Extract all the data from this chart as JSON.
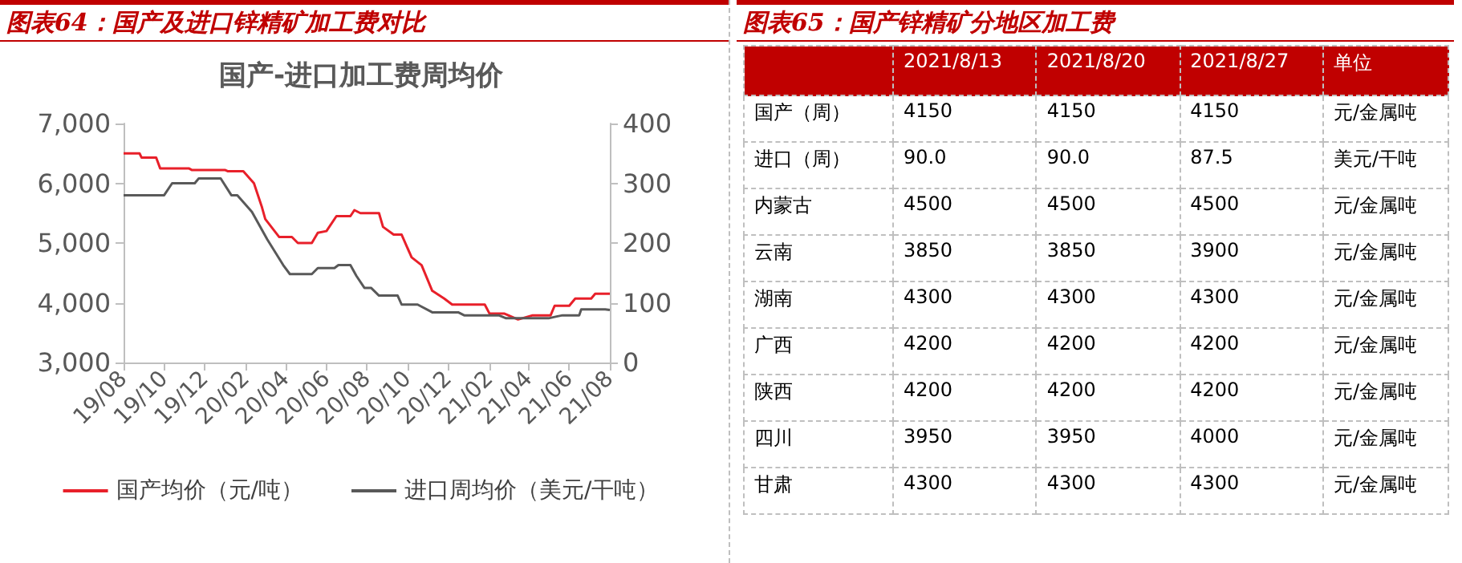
{
  "chart_data": [
    {
      "type": "line",
      "title": "图表64：国产及进口锌精矿加工费对比",
      "subtitle": "国产-进口加工费周均价",
      "legend": "bottom",
      "grid": false,
      "marker": "none",
      "line_style": "solid",
      "xlim": [
        "2019-08",
        "2021-08"
      ],
      "xticks": [
        {
          "value": "2019-08",
          "label": "19/08"
        },
        {
          "value": "2019-10",
          "label": "19/10"
        },
        {
          "value": "2019-12",
          "label": "19/12"
        },
        {
          "value": "2020-02",
          "label": "20/02"
        },
        {
          "value": "2020-04",
          "label": "20/04"
        },
        {
          "value": "2020-06",
          "label": "20/06"
        },
        {
          "value": "2020-08",
          "label": "20/08"
        },
        {
          "value": "2020-10",
          "label": "20/10"
        },
        {
          "value": "2020-12",
          "label": "20/12"
        },
        {
          "value": "2021-02",
          "label": "21/02"
        },
        {
          "value": "2021-04",
          "label": "21/04"
        },
        {
          "value": "2021-06",
          "label": "21/06"
        },
        {
          "value": "2021-08",
          "label": "21/08"
        }
      ],
      "ylim": [
        3000,
        7000
      ],
      "yticks": [
        {
          "value": 3000,
          "label": "3,000"
        },
        {
          "value": 4000,
          "label": "4,000"
        },
        {
          "value": 5000,
          "label": "5,000"
        },
        {
          "value": 6000,
          "label": "6,000"
        },
        {
          "value": 7000,
          "label": "7,000"
        }
      ],
      "y2lim": [
        0,
        400
      ],
      "y2ticks": [
        0,
        100,
        200,
        300,
        400
      ],
      "series": [
        {
          "name": "国产均价（元/吨）",
          "color": "#e8202a",
          "x": [
            "2019-08-01",
            "2019-08-25",
            "2019-08-28",
            "2019-09-19",
            "2019-09-25",
            "2019-11-07",
            "2019-11-12",
            "2020-01-01",
            "2020-01-05",
            "2020-01-28",
            "2020-02-13",
            "2020-02-25",
            "2020-03-01",
            "2020-03-22",
            "2020-04-10",
            "2020-04-19",
            "2020-05-10",
            "2020-05-19",
            "2020-06-01",
            "2020-06-16",
            "2020-07-07",
            "2020-07-13",
            "2020-07-22",
            "2020-08-19",
            "2020-08-25",
            "2020-09-10",
            "2020-09-22",
            "2020-10-07",
            "2020-10-22",
            "2020-11-07",
            "2020-11-25",
            "2020-12-07",
            "2021-01-25",
            "2021-02-01",
            "2021-02-23",
            "2021-03-16",
            "2021-04-07",
            "2021-05-04",
            "2021-05-10",
            "2021-06-01",
            "2021-06-10",
            "2021-07-04",
            "2021-07-10",
            "2021-08-01"
          ],
          "values": [
            6500,
            6500,
            6430,
            6430,
            6250,
            6250,
            6220,
            6220,
            6200,
            6200,
            6000,
            5600,
            5400,
            5100,
            5100,
            5000,
            5000,
            5170,
            5200,
            5450,
            5450,
            5550,
            5500,
            5500,
            5270,
            5140,
            5140,
            4760,
            4630,
            4200,
            4070,
            3970,
            3970,
            3820,
            3820,
            3720,
            3790,
            3790,
            3950,
            3950,
            4070,
            4070,
            4150,
            4150
          ]
        },
        {
          "name": "进口周均价（美元/干吨）",
          "color": "#595959",
          "axis": "y2",
          "x": [
            "2019-08-01",
            "2019-10-01",
            "2019-10-13",
            "2019-11-16",
            "2019-11-22",
            "2019-12-25",
            "2020-01-10",
            "2020-01-19",
            "2020-02-10",
            "2020-03-04",
            "2020-03-28",
            "2020-04-07",
            "2020-05-10",
            "2020-05-19",
            "2020-06-13",
            "2020-06-19",
            "2020-07-07",
            "2020-07-16",
            "2020-07-28",
            "2020-08-07",
            "2020-08-19",
            "2020-09-16",
            "2020-09-22",
            "2020-10-16",
            "2020-11-07",
            "2020-12-16",
            "2020-12-25",
            "2021-02-15",
            "2021-02-26",
            "2021-05-01",
            "2021-05-13",
            "2021-05-22",
            "2021-06-16",
            "2021-06-19",
            "2021-07-25",
            "2021-08-01"
          ],
          "values": [
            280,
            280,
            300,
            300,
            308,
            308,
            280,
            280,
            252,
            206,
            163,
            148,
            148,
            158,
            158,
            163,
            163,
            145,
            125,
            125,
            112,
            112,
            97,
            97,
            84,
            84,
            79,
            79,
            74,
            74,
            77,
            79,
            79,
            89,
            89,
            88
          ]
        }
      ]
    },
    {
      "type": "other",
      "title": "图表65：国产锌精矿分地区加工费",
      "categories": [
        "2021/8/13",
        "2021/8/20",
        "2021/8/27",
        "单位"
      ],
      "y_categories": [
        "国产（周）",
        "进口（周）",
        "内蒙古",
        "云南",
        "湖南",
        "广西",
        "陕西",
        "四川",
        "甘肃"
      ],
      "cell_labels": [
        [
          "4150",
          "4150",
          "4150",
          "元/金属吨"
        ],
        [
          "90.0",
          "90.0",
          "87.5",
          "美元/干吨"
        ],
        [
          "4500",
          "4500",
          "4500",
          "元/金属吨"
        ],
        [
          "3850",
          "3850",
          "3900",
          "元/金属吨"
        ],
        [
          "4300",
          "4300",
          "4300",
          "元/金属吨"
        ],
        [
          "4200",
          "4200",
          "4200",
          "元/金属吨"
        ],
        [
          "4200",
          "4200",
          "4200",
          "元/金属吨"
        ],
        [
          "3950",
          "3950",
          "4000",
          "元/金属吨"
        ],
        [
          "4300",
          "4300",
          "4300",
          "元/金属吨"
        ]
      ]
    }
  ]
}
